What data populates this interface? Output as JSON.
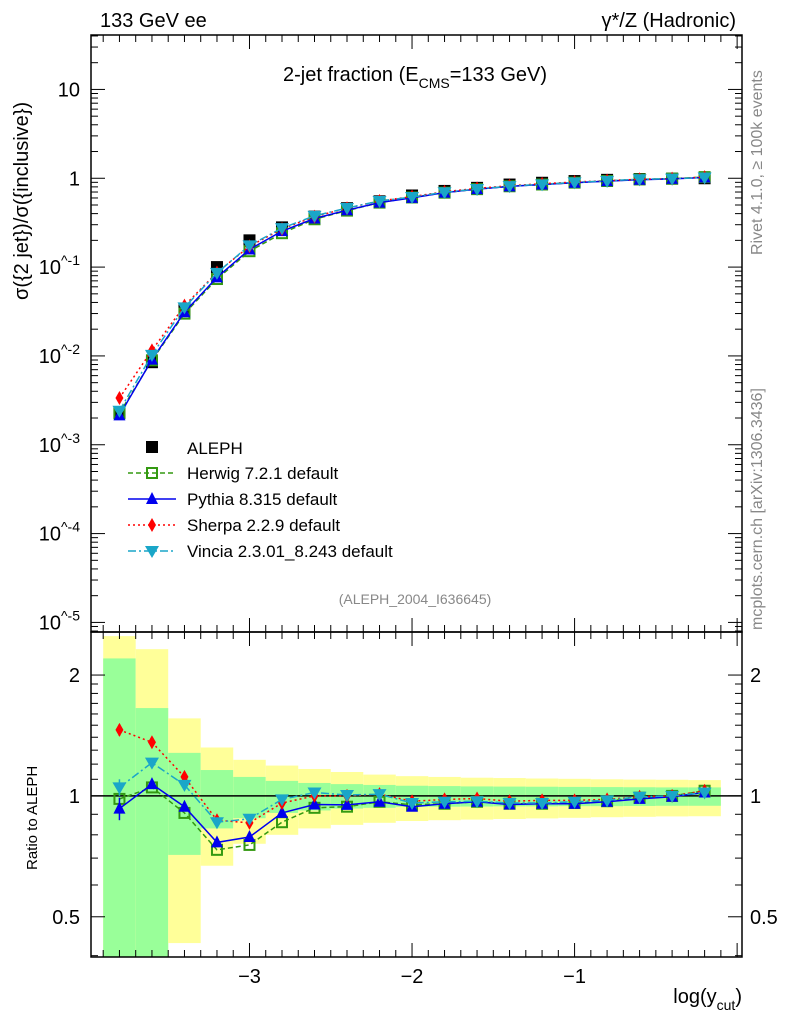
{
  "header": {
    "left": "133 GeV ee",
    "right": "γ*/Z (Hadronic)"
  },
  "side_text": {
    "rivet": "Rivet 4.1.0, ≥ 100k events",
    "mcplots": "mcplots.cern.ch [arXiv:1306.3436]"
  },
  "chart_data": {
    "type": "line",
    "title": "2-jet fraction (E_CMS=133 GeV)",
    "title_parts": {
      "pre": "2-jet fraction (E",
      "sub": "CMS",
      "post": "=133 GeV)"
    },
    "analysis_id": "(ALEPH_2004_I636645)",
    "xlabel": "log(y_cut)",
    "xlabel_parts": {
      "pre": "log(y",
      "sub": "cut",
      "post": ")"
    },
    "ylabel": "σ({2 jet})/σ({inclusive})",
    "ratio_ylabel": "Ratio to ALEPH",
    "xlim": [
      -3.975,
      0.03
    ],
    "ylim": [
      7.8e-06,
      41
    ],
    "ratio_ylim": [
      0.397,
      2.56
    ],
    "y_scale": "log",
    "ratio_scale": "log",
    "xticks": [
      -3,
      -2,
      -1
    ],
    "xtick_labels": [
      "−3",
      "−2",
      "−1"
    ],
    "yticks": [
      10,
      1,
      0.1,
      0.01,
      0.001,
      0.0001,
      1e-05
    ],
    "ytick_labels": [
      "10",
      "1",
      "10^-1",
      "10^-2",
      "10^-3",
      "10^-4",
      "10^-5"
    ],
    "ratio_ticks": [
      2,
      1,
      0.5
    ],
    "ratio_tick_labels": [
      "2",
      "1",
      "0.5"
    ],
    "legend_position": "bottom-left",
    "x": [
      -3.8,
      -3.6,
      -3.4,
      -3.2,
      -3.0,
      -2.8,
      -2.6,
      -2.4,
      -2.2,
      -2.0,
      -1.8,
      -1.6,
      -1.4,
      -1.2,
      -1.0,
      -0.8,
      -0.6,
      -0.4,
      -0.2
    ],
    "bin_width": 0.2,
    "data": {
      "name": "ALEPH",
      "values": [
        0.0023,
        0.0085,
        0.033,
        0.1,
        0.2,
        0.28,
        0.37,
        0.46,
        0.55,
        0.64,
        0.72,
        0.78,
        0.85,
        0.89,
        0.93,
        0.96,
        0.98,
        0.99,
        1.0
      ]
    },
    "uncertainty_bands": {
      "inner_color": "#99ff99",
      "outer_color": "#ffff99",
      "inner_up": [
        2.2,
        1.655,
        1.28,
        1.16,
        1.115,
        1.09,
        1.077,
        1.07,
        1.065,
        1.06,
        1.058,
        1.056,
        1.055,
        1.054,
        1.053,
        1.052,
        1.051,
        1.05,
        1.05
      ],
      "inner_down": [
        0.3,
        0.3,
        0.713,
        0.83,
        0.88,
        0.907,
        0.92,
        0.93,
        0.934,
        0.94,
        0.94,
        0.941,
        0.942,
        0.942,
        0.943,
        0.943,
        0.944,
        0.945,
        0.945
      ],
      "outer_up": [
        2.5,
        2.32,
        1.56,
        1.32,
        1.23,
        1.19,
        1.167,
        1.147,
        1.13,
        1.12,
        1.115,
        1.11,
        1.108,
        1.105,
        1.103,
        1.1,
        1.098,
        1.097,
        1.095
      ],
      "outer_down": [
        0.3,
        0.3,
        0.43,
        0.67,
        0.76,
        0.8,
        0.83,
        0.847,
        0.857,
        0.866,
        0.87,
        0.873,
        0.876,
        0.879,
        0.882,
        0.885,
        0.887,
        0.889,
        0.89
      ]
    },
    "series": [
      {
        "name": "Herwig 7.2.1 default",
        "color": "#339911",
        "marker": "open-square",
        "line": "dashed",
        "ratio": [
          0.983,
          1.05,
          0.907,
          0.734,
          0.755,
          0.86,
          0.934,
          0.94,
          0.967,
          0.95,
          0.956,
          0.967,
          0.956,
          0.956,
          0.96,
          0.97,
          0.99,
          1.0,
          1.03
        ]
      },
      {
        "name": "Pythia 8.315 default",
        "color": "#0000ee",
        "marker": "triangle-up",
        "line": "solid",
        "ratio": [
          0.93,
          1.07,
          0.94,
          0.766,
          0.79,
          0.907,
          0.952,
          0.95,
          0.967,
          0.94,
          0.956,
          0.967,
          0.952,
          0.956,
          0.956,
          0.967,
          0.983,
          0.995,
          1.02
        ],
        "ratio_err_first": 0.06
      },
      {
        "name": "Sherpa 2.2.9 default",
        "color": "#ff0000",
        "marker": "diamond",
        "line": "dotted",
        "ratio": [
          1.46,
          1.36,
          1.115,
          0.87,
          0.857,
          0.96,
          1.0,
          1.0,
          1.01,
          0.97,
          0.98,
          0.985,
          0.97,
          0.975,
          0.975,
          0.98,
          0.995,
          1.0,
          1.03
        ],
        "ratio_err_first": 0.05
      },
      {
        "name": "Vincia 2.3.01_8.243 default",
        "color": "#1aa6c8",
        "marker": "triangle-down",
        "line": "dashdot",
        "ratio": [
          1.05,
          1.21,
          1.065,
          0.86,
          0.877,
          0.98,
          1.02,
          1.005,
          1.01,
          0.96,
          0.967,
          0.97,
          0.96,
          0.96,
          0.967,
          0.975,
          0.995,
          1.0,
          1.02
        ],
        "ratio_err_first": 0.05
      }
    ]
  }
}
